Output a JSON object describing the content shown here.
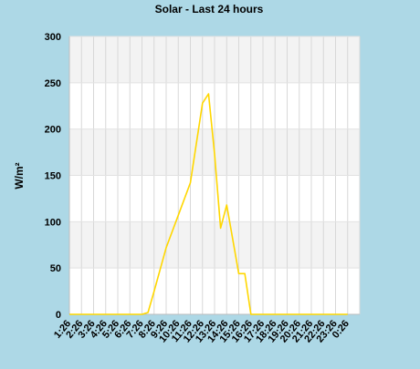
{
  "chart_data": {
    "type": "line",
    "title": "Solar - Last 24 hours",
    "xlabel": "",
    "ylabel": "W/m²",
    "ylim": [
      0,
      300
    ],
    "yticks": [
      0,
      50,
      100,
      150,
      200,
      250,
      300
    ],
    "grid": true,
    "categories": [
      "1:26",
      "2:26",
      "3:26",
      "4:26",
      "5:26",
      "6:26",
      "7:26",
      "8:26",
      "9:26",
      "10:26",
      "11:26",
      "12:26",
      "13:26",
      "14:26",
      "15:26",
      "16:26",
      "17:26",
      "18:26",
      "19:26",
      "20:26",
      "21:26",
      "22:26",
      "23:26",
      "0:26"
    ],
    "series": [
      {
        "color": "#ffd700",
        "points": [
          [
            "1:26",
            0
          ],
          [
            "2:26",
            0
          ],
          [
            "3:26",
            0
          ],
          [
            "4:26",
            0
          ],
          [
            "5:26",
            0
          ],
          [
            "6:26",
            0
          ],
          [
            "7:26",
            0
          ],
          [
            "7:56",
            2
          ],
          [
            "8:26",
            25
          ],
          [
            "9:26",
            72
          ],
          [
            "10:26",
            107
          ],
          [
            "11:26",
            142
          ],
          [
            "12:26",
            228
          ],
          [
            "12:56",
            238
          ],
          [
            "13:26",
            173
          ],
          [
            "13:56",
            93
          ],
          [
            "14:26",
            118
          ],
          [
            "15:26",
            44
          ],
          [
            "15:56",
            44
          ],
          [
            "16:26",
            0
          ],
          [
            "17:26",
            0
          ],
          [
            "18:26",
            0
          ],
          [
            "19:26",
            0
          ],
          [
            "20:26",
            0
          ],
          [
            "21:26",
            0
          ],
          [
            "22:26",
            0
          ],
          [
            "23:26",
            0
          ],
          [
            "0:26",
            0
          ]
        ]
      }
    ]
  }
}
